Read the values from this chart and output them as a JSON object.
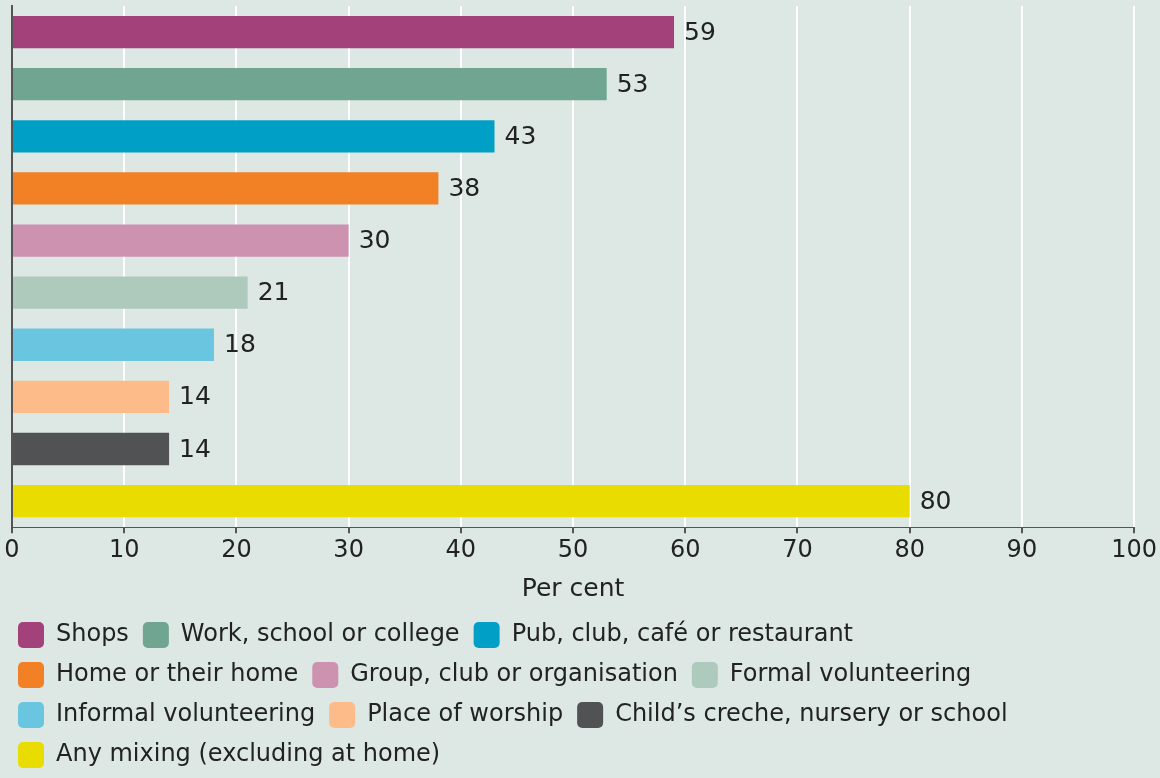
{
  "chart_data": {
    "type": "bar",
    "orientation": "horizontal",
    "xlabel": "Per cent",
    "categories": [
      null,
      null,
      null,
      null,
      null,
      null,
      null,
      null,
      null,
      null
    ],
    "series": [
      {
        "name": "Shops",
        "color": "#a3427a",
        "values": [
          59,
          null,
          null,
          null,
          null,
          null,
          null,
          null,
          null,
          null
        ]
      },
      {
        "name": "Work, school or college",
        "color": "#70a691",
        "values": [
          null,
          53,
          null,
          null,
          null,
          null,
          null,
          null,
          null,
          null
        ]
      },
      {
        "name": "Pub, club, café or restaurant",
        "color": "#00a0c6",
        "values": [
          null,
          null,
          43,
          null,
          null,
          null,
          null,
          null,
          null,
          null
        ]
      },
      {
        "name": "Home or their home",
        "color": "#f28025",
        "values": [
          null,
          null,
          null,
          38,
          null,
          null,
          null,
          null,
          null,
          null
        ]
      },
      {
        "name": "Group, club or organisation",
        "color": "#cc92b0",
        "values": [
          null,
          null,
          null,
          null,
          30,
          null,
          null,
          null,
          null,
          null
        ]
      },
      {
        "name": "Formal volunteering",
        "color": "#adcabd",
        "values": [
          null,
          null,
          null,
          null,
          null,
          21,
          null,
          null,
          null,
          null
        ]
      },
      {
        "name": "Informal volunteering",
        "color": "#6ac6e0",
        "values": [
          null,
          null,
          null,
          null,
          null,
          null,
          18,
          null,
          null,
          null
        ]
      },
      {
        "name": "Place of worship",
        "color": "#fdbb8a",
        "values": [
          null,
          null,
          null,
          null,
          null,
          null,
          null,
          14,
          null,
          null
        ]
      },
      {
        "name": "Child’s creche, nursery or school",
        "color": "#505254",
        "values": [
          null,
          null,
          null,
          null,
          null,
          null,
          null,
          null,
          14,
          null
        ]
      },
      {
        "name": "Any mixing (excluding at home)",
        "color": "#e8dc00",
        "values": [
          null,
          null,
          null,
          null,
          null,
          null,
          null,
          null,
          null,
          80
        ]
      }
    ],
    "xlim": [
      0,
      100
    ],
    "xticks": [
      0,
      10,
      20,
      30,
      40,
      50,
      60,
      70,
      80,
      90,
      100
    ],
    "grid": "x",
    "legend": "bottom",
    "tick_labels": "x",
    "data_labels": true
  }
}
